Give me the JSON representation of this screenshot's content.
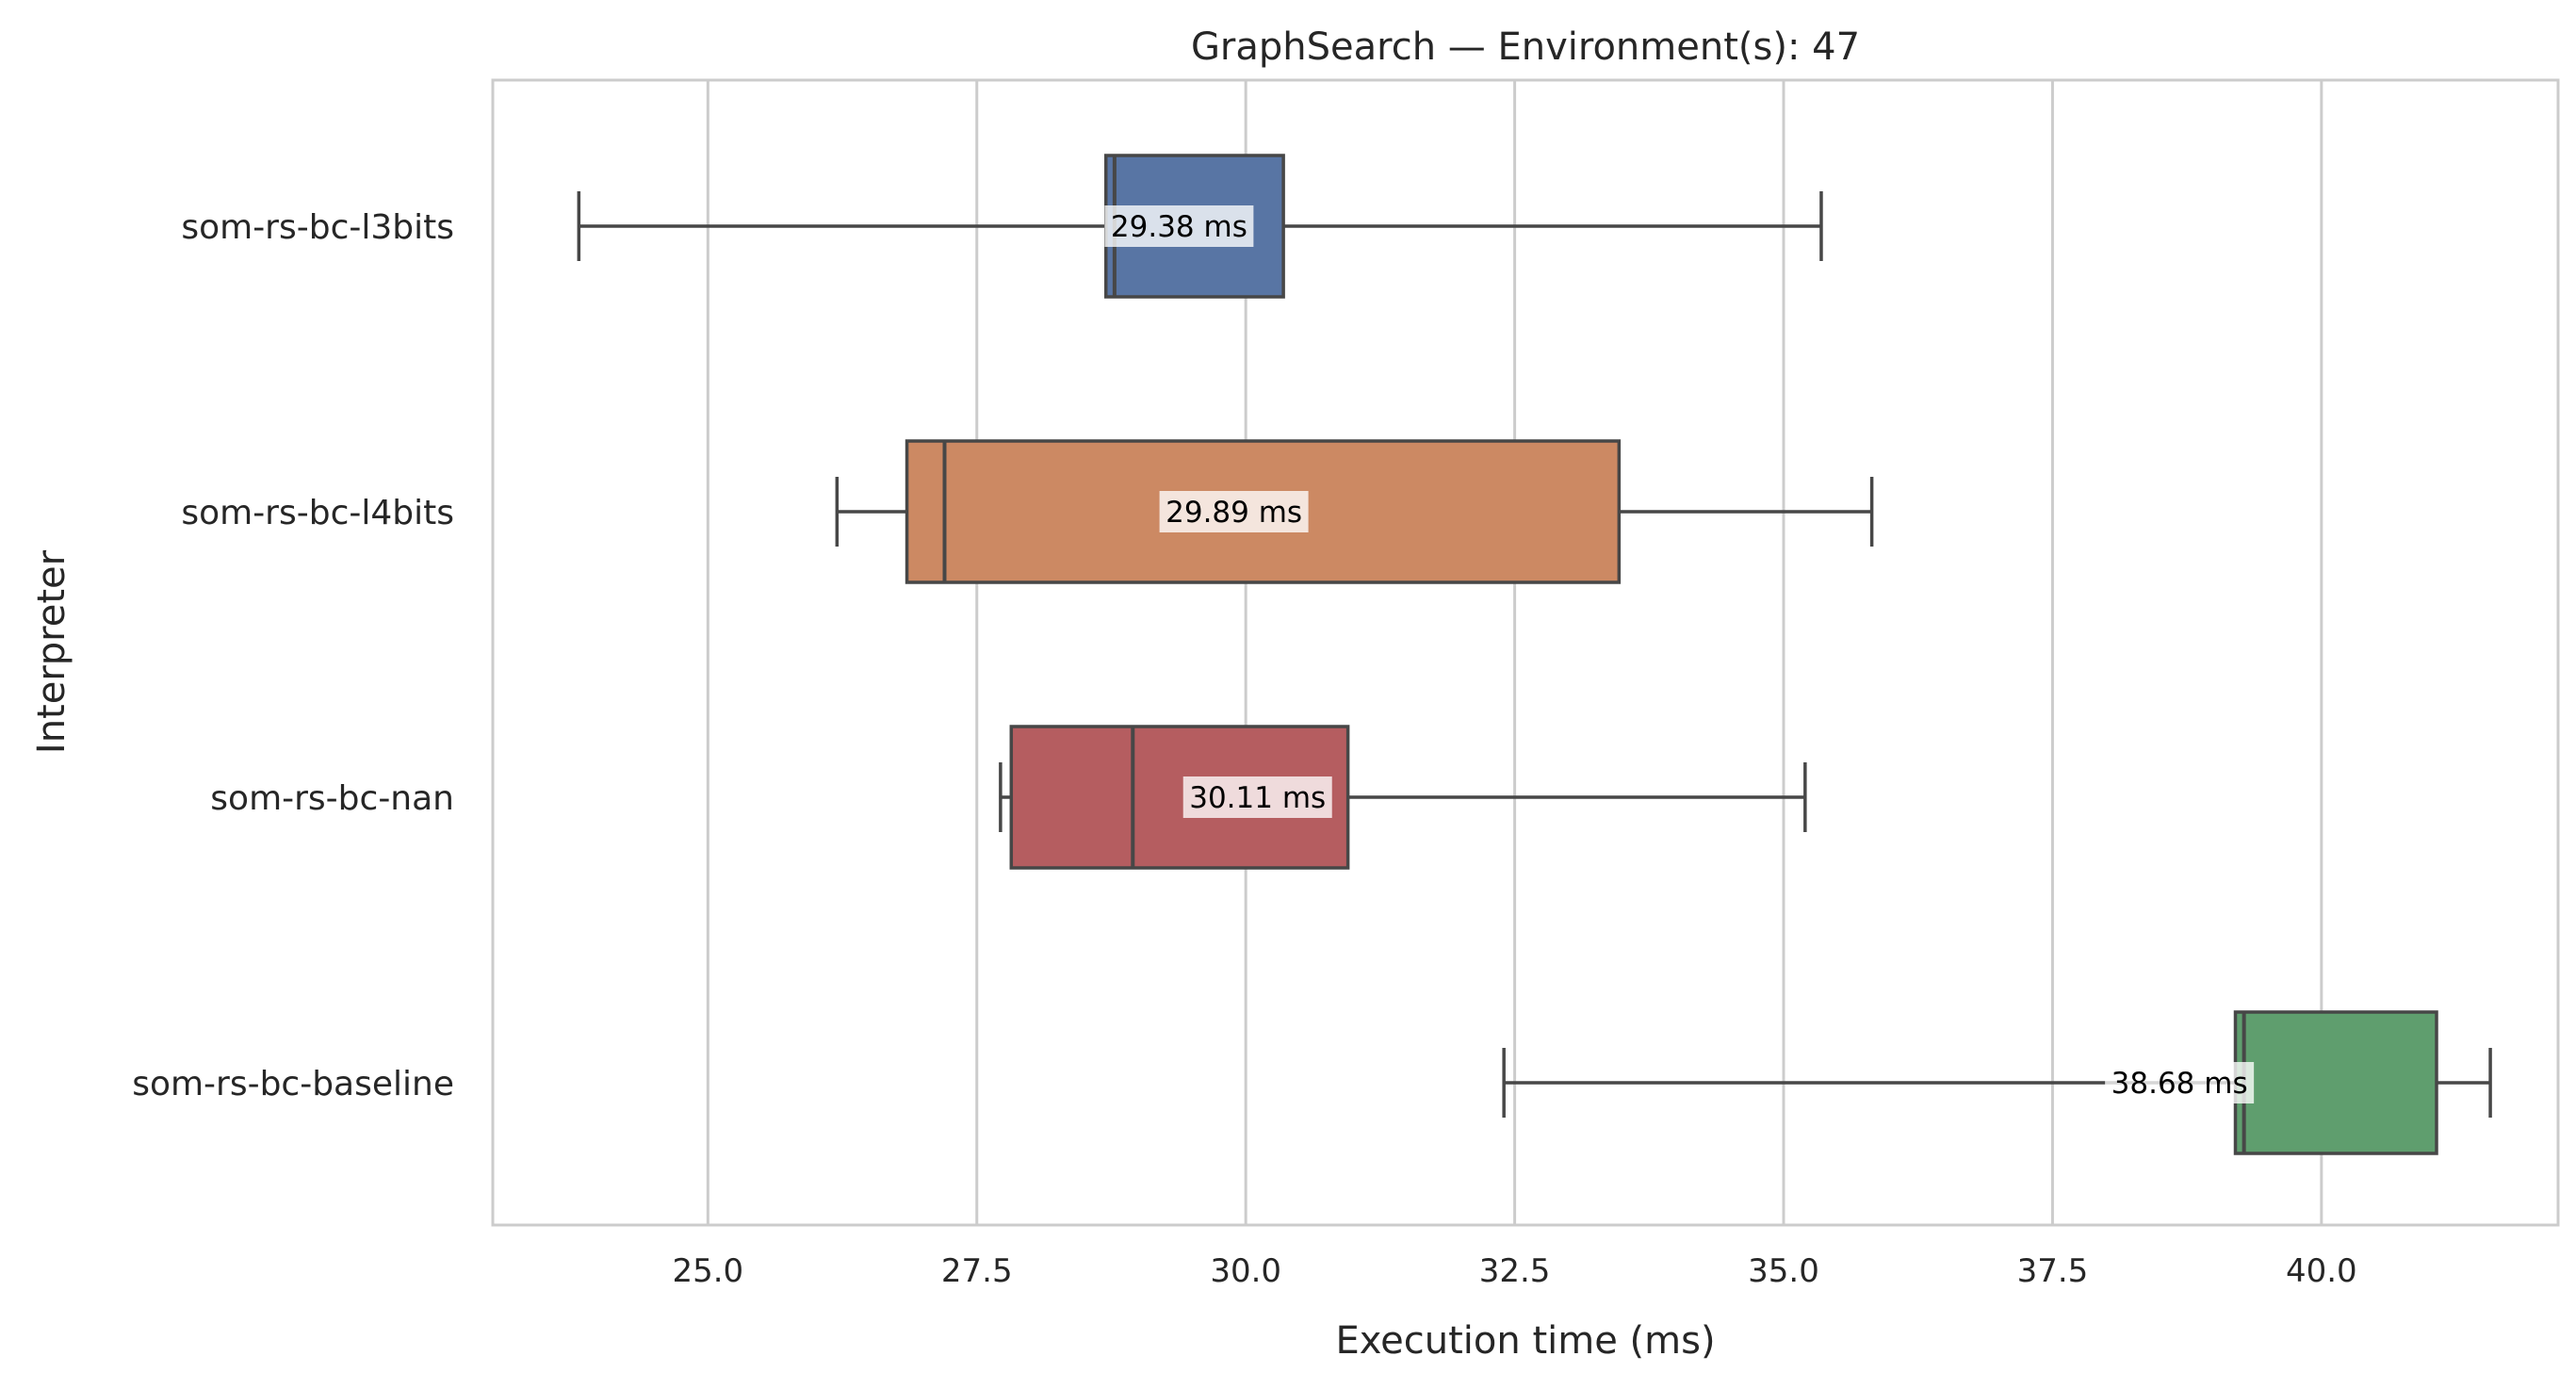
{
  "chart_data": {
    "type": "boxplot",
    "orientation": "horizontal",
    "title": "GraphSearch — Environment(s): 47",
    "xlabel": "Execution time (ms)",
    "ylabel": "Interpreter",
    "xlim": [
      23.0,
      42.2
    ],
    "xticks": [
      "25.0",
      "27.5",
      "30.0",
      "32.5",
      "35.0",
      "37.5",
      "40.0"
    ],
    "grid": "vertical",
    "categories": [
      "som-rs-bc-l3bits",
      "som-rs-bc-l4bits",
      "som-rs-bc-nan",
      "som-rs-bc-baseline"
    ],
    "series": [
      {
        "name": "som-rs-bc-l3bits",
        "color": "#5875a4",
        "whisker_low": 23.8,
        "q1": 28.7,
        "median": 28.78,
        "q3": 30.35,
        "whisker_high": 35.35,
        "mean": 29.38,
        "mean_label": "29.38 ms"
      },
      {
        "name": "som-rs-bc-l4bits",
        "color": "#cc8963",
        "whisker_low": 26.2,
        "q1": 26.85,
        "median": 27.2,
        "q3": 33.47,
        "whisker_high": 35.82,
        "mean": 29.89,
        "mean_label": "29.89 ms"
      },
      {
        "name": "som-rs-bc-nan",
        "color": "#b55d60",
        "whisker_low": 27.72,
        "q1": 27.82,
        "median": 28.95,
        "q3": 30.95,
        "whisker_high": 35.2,
        "mean": 30.11,
        "mean_label": "30.11 ms"
      },
      {
        "name": "som-rs-bc-baseline",
        "color": "#5f9e6e",
        "whisker_low": 32.4,
        "q1": 39.2,
        "median": 39.28,
        "q3": 41.07,
        "whisker_high": 41.57,
        "mean": 38.68,
        "mean_label": "38.68 ms"
      }
    ]
  }
}
